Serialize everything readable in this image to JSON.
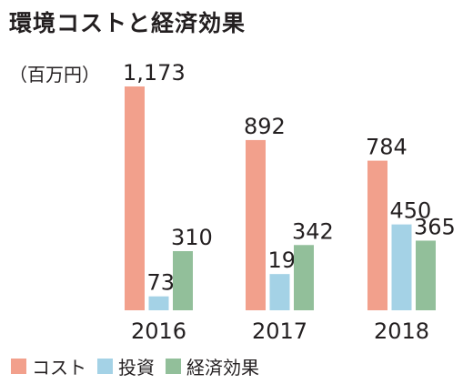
{
  "chart_data": {
    "type": "bar",
    "title": "環境コストと経済効果",
    "unit_label": "（百万円）",
    "categories": [
      "2016",
      "2017",
      "2018"
    ],
    "series": [
      {
        "name": "コスト",
        "values": [
          1173,
          892,
          784
        ],
        "labels": [
          "1,173",
          "892",
          "784"
        ],
        "color": "#f2a08c"
      },
      {
        "name": "投資",
        "values": [
          73,
          190,
          450
        ],
        "labels": [
          "73",
          "190",
          "450"
        ],
        "color": "#a4d2e6"
      },
      {
        "name": "経済効果",
        "values": [
          310,
          342,
          365
        ],
        "labels": [
          "310",
          "342",
          "365"
        ],
        "color": "#92bf9a"
      }
    ],
    "ylim": [
      0,
      1173
    ],
    "grid": false,
    "legend_position": "bottom-left"
  }
}
